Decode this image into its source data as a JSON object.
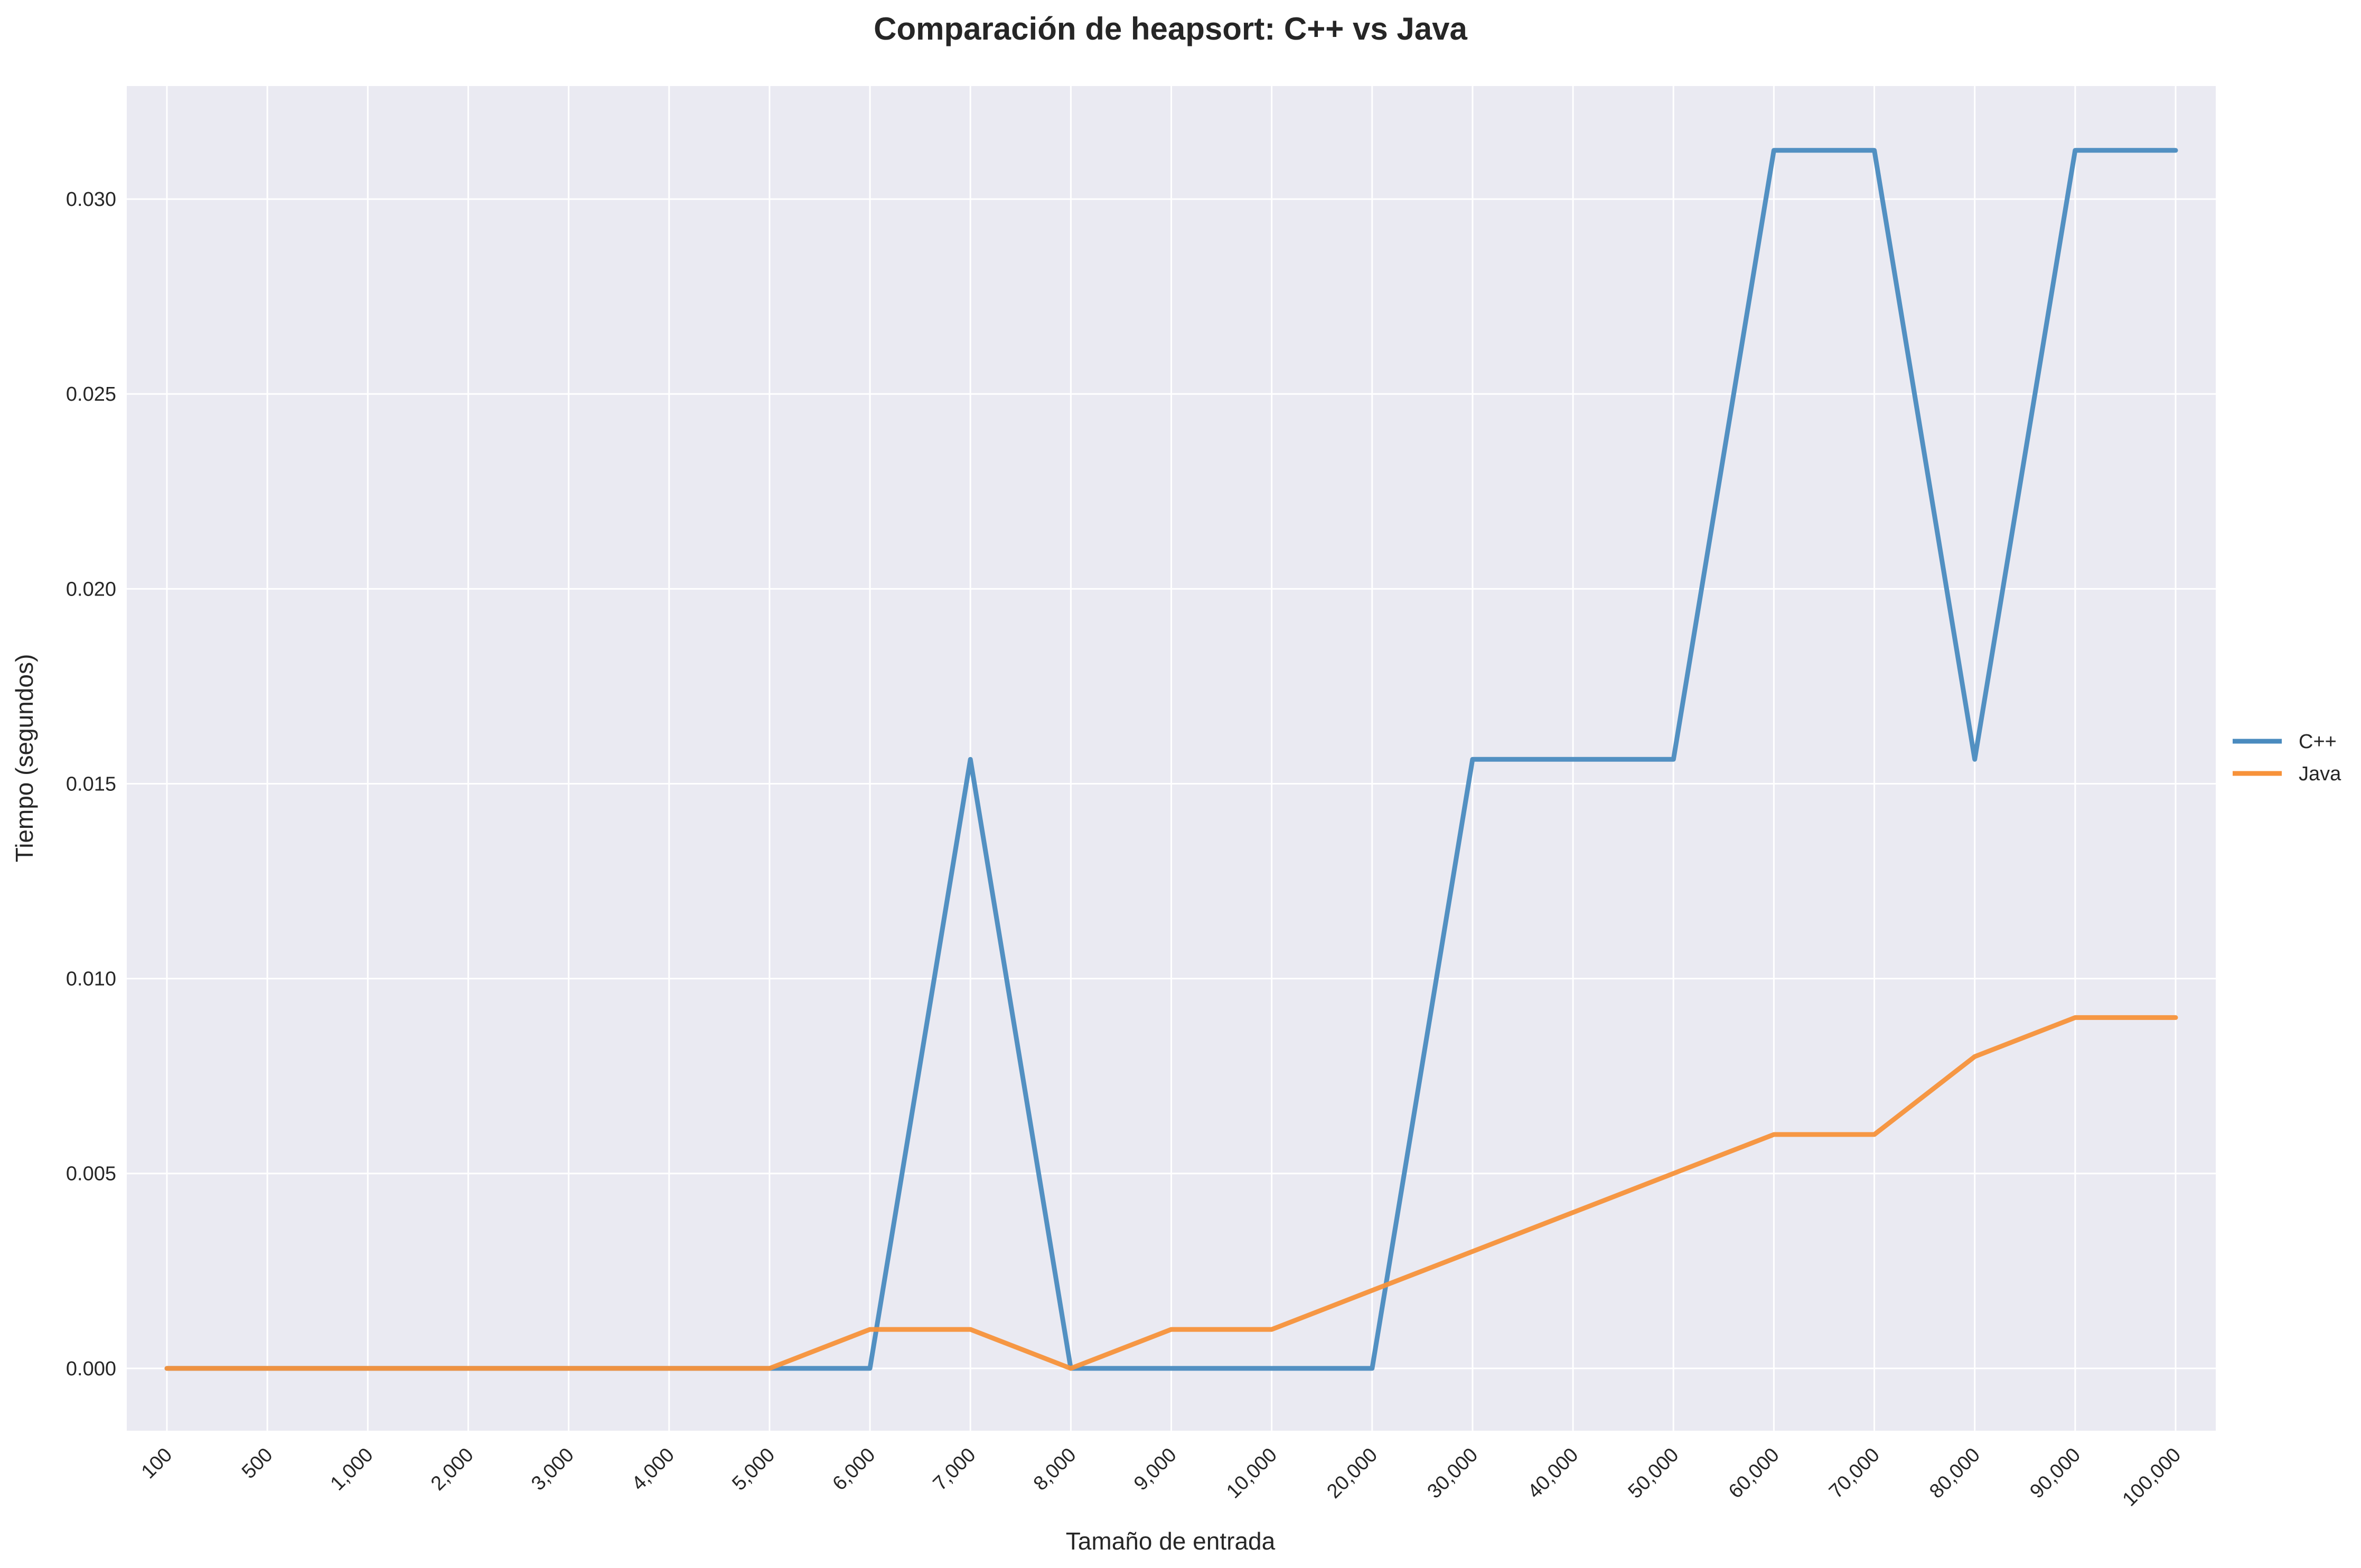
{
  "chart_data": {
    "type": "line",
    "title": "Comparación de heapsort: C++ vs Java",
    "xlabel": "Tamaño de entrada",
    "ylabel": "Tiempo (segundos)",
    "categories": [
      "100",
      "500",
      "1,000",
      "2,000",
      "3,000",
      "4,000",
      "5,000",
      "6,000",
      "7,000",
      "8,000",
      "9,000",
      "10,000",
      "20,000",
      "30,000",
      "40,000",
      "50,000",
      "60,000",
      "70,000",
      "80,000",
      "90,000",
      "100,000"
    ],
    "series": [
      {
        "name": "C++",
        "color": "#4a8bbf",
        "values": [
          0,
          0,
          0,
          0,
          0,
          0,
          0,
          0,
          0.015625,
          0,
          0,
          0,
          0,
          0.015625,
          0.015625,
          0.015625,
          0.03125,
          0.03125,
          0.015625,
          0.03125,
          0.03125
        ]
      },
      {
        "name": "Java",
        "color": "#f7923a",
        "values": [
          0,
          0,
          0,
          0,
          0,
          0,
          0,
          0.001,
          0.001,
          0,
          0.001,
          0.001,
          0.002,
          0.003,
          0.004,
          0.005,
          0.006,
          0.006,
          0.008,
          0.009,
          0.009
        ]
      }
    ],
    "ylim": [
      -0.0016,
      0.0329
    ],
    "yticks": [
      "0.000",
      "0.005",
      "0.010",
      "0.015",
      "0.020",
      "0.025",
      "0.030"
    ],
    "grid": true,
    "legend": "right",
    "plot_background": "#eaeaf2",
    "grid_color": "#ffffff"
  }
}
